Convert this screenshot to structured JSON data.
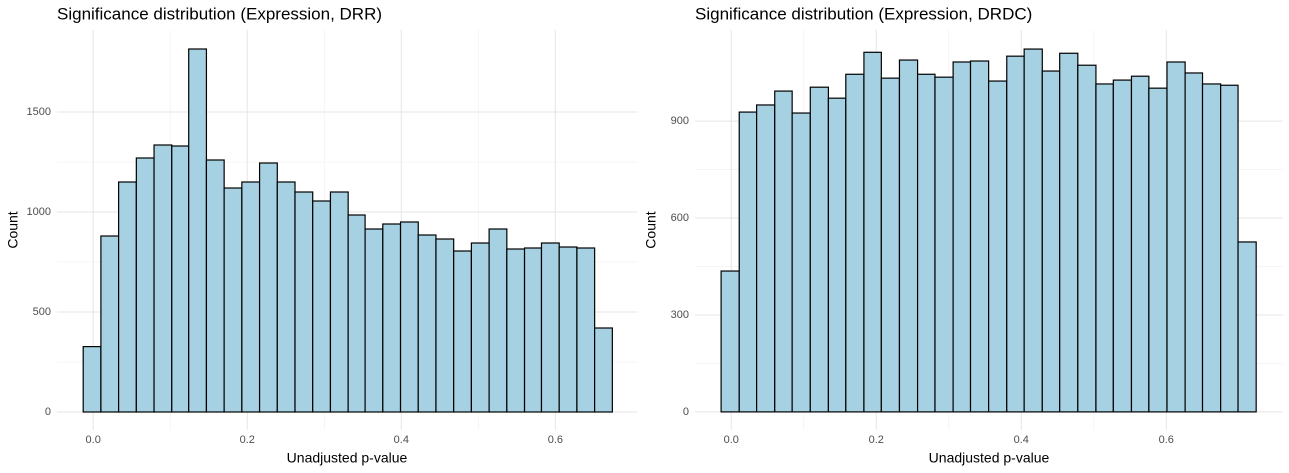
{
  "chart_data": [
    {
      "type": "histogram",
      "title": "Significance distribution (Expression, DRR)",
      "xlabel": "Unadjusted p-value",
      "ylabel": "Count",
      "bins": [
        -0.013,
        0.01,
        0.033,
        0.056,
        0.079,
        0.102,
        0.124,
        0.147,
        0.17,
        0.193,
        0.216,
        0.239,
        0.262,
        0.285,
        0.308,
        0.331,
        0.353,
        0.376,
        0.399,
        0.422,
        0.445,
        0.468,
        0.491,
        0.514,
        0.537,
        0.56,
        0.582,
        0.605,
        0.628,
        0.651,
        0.674
      ],
      "values": [
        327,
        880,
        1150,
        1270,
        1335,
        1330,
        1815,
        1260,
        1120,
        1150,
        1245,
        1150,
        1100,
        1055,
        1100,
        985,
        915,
        940,
        950,
        885,
        865,
        805,
        845,
        915,
        815,
        820,
        845,
        825,
        820,
        420
      ],
      "color": "#a6d1e2",
      "edgecolor": "#000000",
      "xlim": [
        -0.047,
        0.706
      ],
      "ylim": [
        -90,
        1910
      ],
      "xticks": [
        {
          "value": 0,
          "label": "0.0"
        },
        0.2,
        0.4,
        0.6
      ],
      "yticks": [
        0,
        500,
        1000,
        1500
      ],
      "grid": true
    },
    {
      "type": "histogram",
      "title": "Significance distribution (Expression, DRDC)",
      "xlabel": "Unadjusted p-value",
      "ylabel": "Count",
      "bins": [
        -0.014,
        0.011,
        0.035,
        0.06,
        0.084,
        0.109,
        0.134,
        0.158,
        0.183,
        0.207,
        0.232,
        0.257,
        0.281,
        0.306,
        0.33,
        0.355,
        0.38,
        0.404,
        0.429,
        0.453,
        0.478,
        0.503,
        0.527,
        0.552,
        0.576,
        0.601,
        0.626,
        0.65,
        0.675,
        0.699,
        0.724
      ],
      "values": [
        436,
        928,
        950,
        993,
        925,
        1005,
        971,
        1045,
        1113,
        1033,
        1089,
        1045,
        1036,
        1083,
        1086,
        1024,
        1101,
        1123,
        1055,
        1110,
        1073,
        1015,
        1027,
        1039,
        1002,
        1083,
        1049,
        1015,
        1011,
        526
      ],
      "color": "#a6d1e2",
      "edgecolor": "#000000",
      "xlim": [
        -0.05,
        0.761
      ],
      "ylim": [
        -56,
        1182
      ],
      "xticks": [
        {
          "value": 0,
          "label": "0.0"
        },
        0.2,
        0.4,
        0.6
      ],
      "yticks": [
        0,
        300,
        600,
        900
      ],
      "grid": true
    }
  ]
}
